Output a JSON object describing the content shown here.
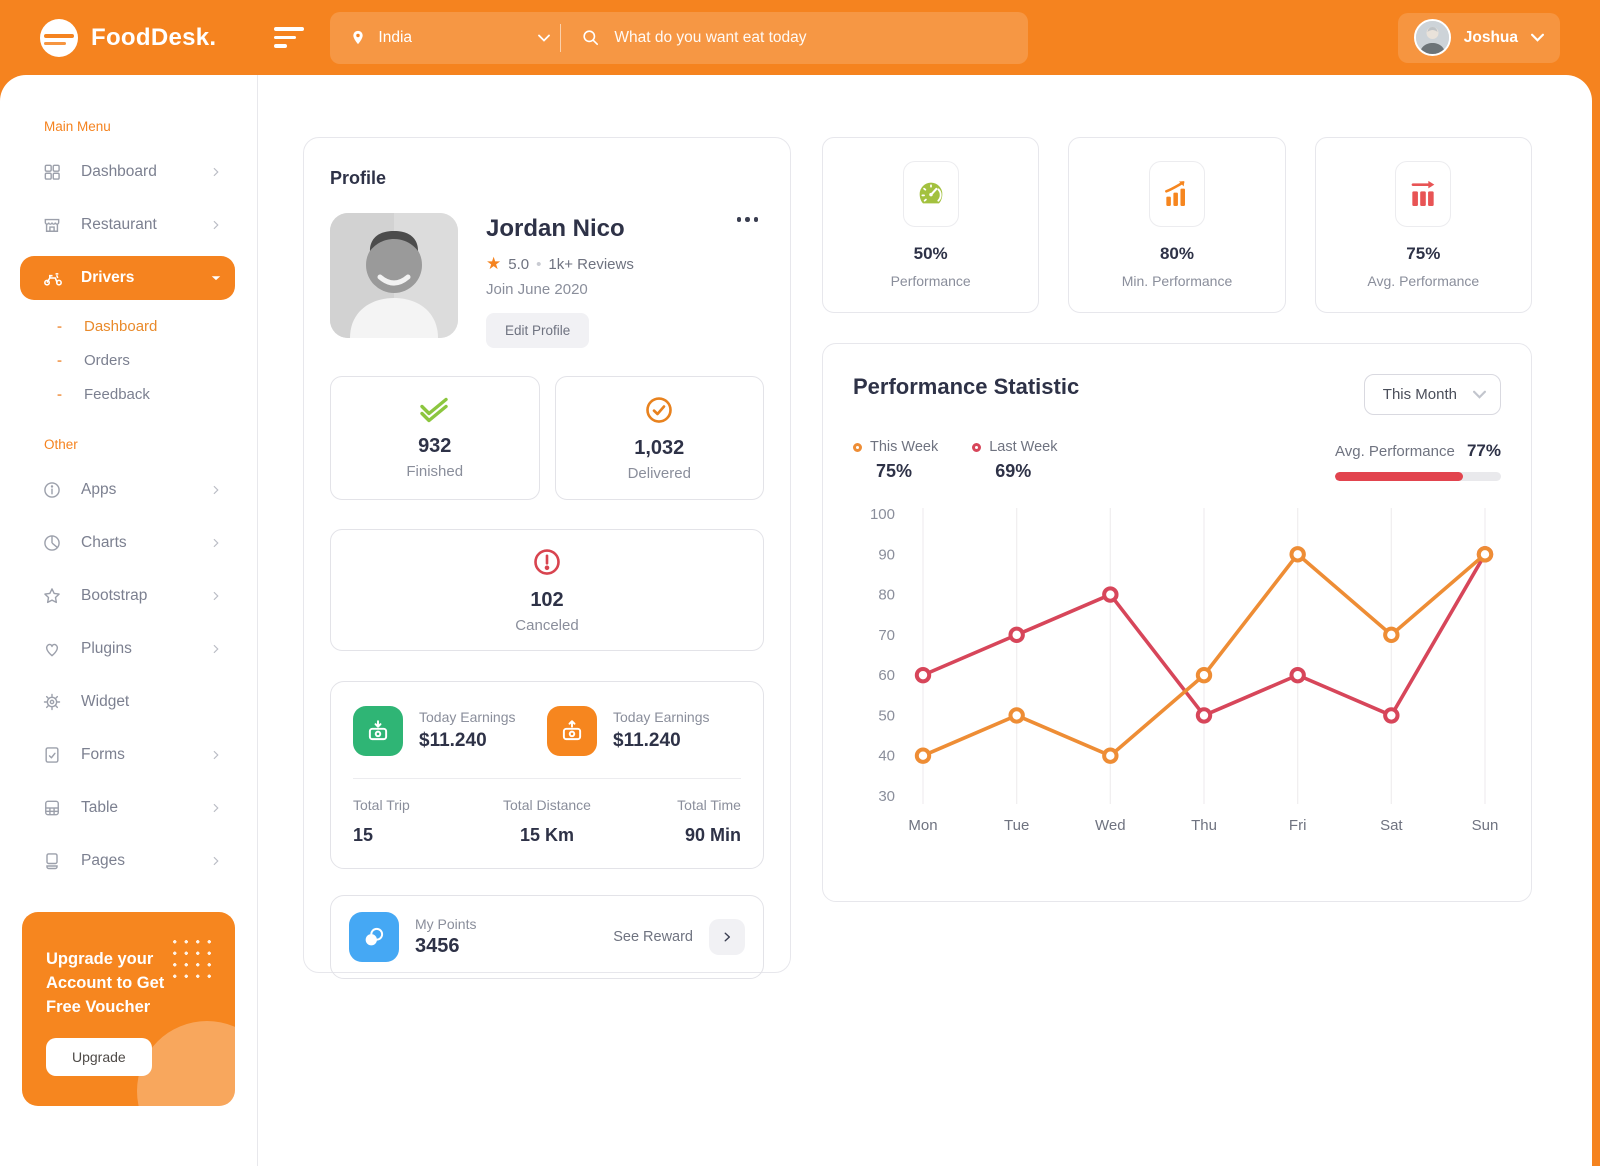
{
  "theme": {
    "accent_orange": "#F5831F",
    "chart_orange": "#EE8D35",
    "chart_red": "#D7465A",
    "success_green": "#2FB575",
    "gauge_green": "#A3C13F",
    "lime_green": "#8CC63F",
    "alert_red": "#E2444E",
    "points_blue": "#45A8F4"
  },
  "header": {
    "brand": "FoodDesk.",
    "location": "India",
    "search_placeholder": "What do you want eat today",
    "user_name": "Joshua"
  },
  "sidebar": {
    "section_main": "Main Menu",
    "items_main": [
      {
        "label": "Dashboard",
        "icon": "grid"
      },
      {
        "label": "Restaurant",
        "icon": "storefront"
      },
      {
        "label": "Drivers",
        "icon": "scooter",
        "active": true
      }
    ],
    "drivers_submenu": [
      {
        "label": "Dashboard",
        "active": true
      },
      {
        "label": "Orders"
      },
      {
        "label": "Feedback"
      }
    ],
    "section_other": "Other",
    "items_other": [
      {
        "label": "Apps",
        "icon": "info"
      },
      {
        "label": "Charts",
        "icon": "pie"
      },
      {
        "label": "Bootstrap",
        "icon": "star"
      },
      {
        "label": "Plugins",
        "icon": "heart"
      },
      {
        "label": "Widget",
        "icon": "gear"
      },
      {
        "label": "Forms",
        "icon": "doc-check"
      },
      {
        "label": "Table",
        "icon": "table"
      },
      {
        "label": "Pages",
        "icon": "pages"
      }
    ],
    "upgrade": {
      "title": "Upgrade your Account to Get Free Voucher",
      "button_label": "Upgrade"
    }
  },
  "profile": {
    "card_title": "Profile",
    "name": "Jordan Nico",
    "rating": "5.0",
    "rating_separator": "•",
    "reviews": "1k+ Reviews",
    "joined": "Join June 2020",
    "edit_button": "Edit Profile",
    "stats": {
      "finished": {
        "value": "932",
        "label": "Finished"
      },
      "delivered": {
        "value": "1,032",
        "label": "Delivered"
      },
      "canceled": {
        "value": "102",
        "label": "Canceled"
      }
    },
    "earnings": [
      {
        "label": "Today Earnings",
        "value": "$11.240"
      },
      {
        "label": "Today Earnings",
        "value": "$11.240"
      }
    ],
    "totals": [
      {
        "label": "Total Trip",
        "value": "15"
      },
      {
        "label": "Total Distance",
        "value": "15 Km"
      },
      {
        "label": "Total Time",
        "value": "90 Min"
      }
    ],
    "points": {
      "label": "My Points",
      "value": "3456",
      "link": "See Reward"
    }
  },
  "stat_cards": [
    {
      "value": "50%",
      "label": "Performance",
      "icon": "gauge-icon"
    },
    {
      "value": "80%",
      "label": "Min. Performance",
      "icon": "bars-up-icon"
    },
    {
      "value": "75%",
      "label": "Avg. Performance",
      "icon": "bars-right-icon"
    }
  ],
  "performance": {
    "title": "Performance Statistic",
    "range_selector": "This Month",
    "legend": [
      {
        "label": "This Week",
        "value": "75%"
      },
      {
        "label": "Last Week",
        "value": "69%"
      }
    ],
    "avg_label": "Avg. Performance",
    "avg_value": "77%",
    "avg_percent": 77
  },
  "chart_data": {
    "type": "line",
    "x": [
      "Mon",
      "Tue",
      "Wed",
      "Thu",
      "Fri",
      "Sat",
      "Sun"
    ],
    "series": [
      {
        "name": "This Week",
        "color": "#EE8D35",
        "values": [
          40,
          50,
          40,
          60,
          90,
          70,
          90
        ]
      },
      {
        "name": "Last Week",
        "color": "#D7465A",
        "values": [
          60,
          70,
          80,
          50,
          60,
          50,
          90
        ]
      }
    ],
    "ylim": [
      30,
      100
    ],
    "yticks": [
      30,
      40,
      50,
      60,
      70,
      80,
      90,
      100
    ],
    "grid": "vertical-only",
    "legend_position": "top-left"
  }
}
